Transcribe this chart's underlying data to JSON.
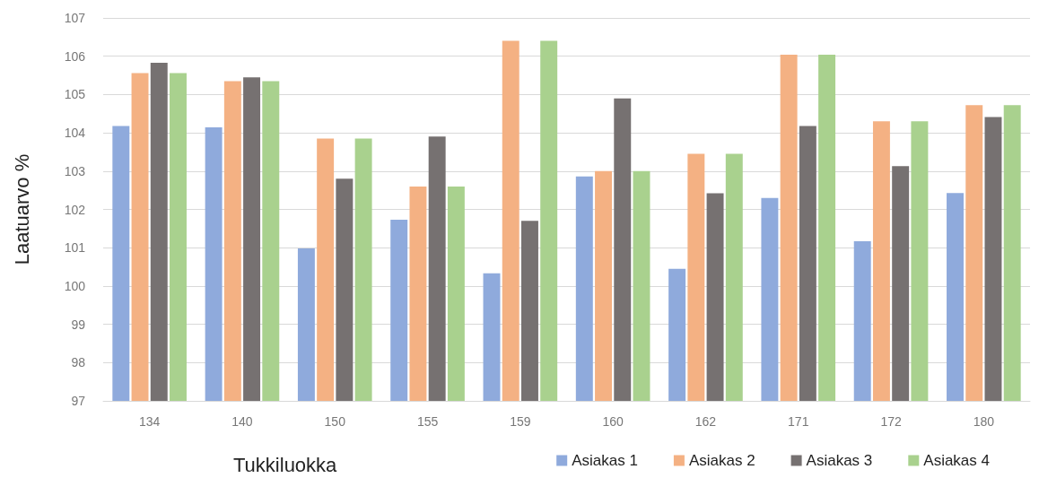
{
  "chart_data": {
    "type": "bar",
    "xlabel": "Tukkiluokka",
    "ylabel": "Laatuarvo %",
    "categories": [
      "134",
      "140",
      "150",
      "155",
      "159",
      "160",
      "162",
      "171",
      "172",
      "180"
    ],
    "series": [
      {
        "name": "Asiakas 1",
        "color": "#8faadc",
        "values": [
          104.18,
          104.14,
          100.98,
          101.73,
          100.33,
          102.86,
          100.45,
          102.3,
          101.17,
          102.43
        ]
      },
      {
        "name": "Asiakas 2",
        "color": "#f4b183",
        "values": [
          105.56,
          105.35,
          103.85,
          102.6,
          106.4,
          103.0,
          103.45,
          106.04,
          104.3,
          104.72
        ]
      },
      {
        "name": "Asiakas 3",
        "color": "#767171",
        "values": [
          105.83,
          105.45,
          102.8,
          103.9,
          101.7,
          104.9,
          102.42,
          104.18,
          103.13,
          104.41
        ]
      },
      {
        "name": "Asiakas 4",
        "color": "#a9d18e",
        "values": [
          105.56,
          105.35,
          103.85,
          102.6,
          106.4,
          103.0,
          103.45,
          106.04,
          104.3,
          104.72
        ]
      }
    ],
    "ylim": [
      97,
      107
    ],
    "yticks": [
      97,
      98,
      99,
      100,
      101,
      102,
      103,
      104,
      105,
      106,
      107
    ],
    "grid": "y",
    "legend": "bottom right"
  }
}
